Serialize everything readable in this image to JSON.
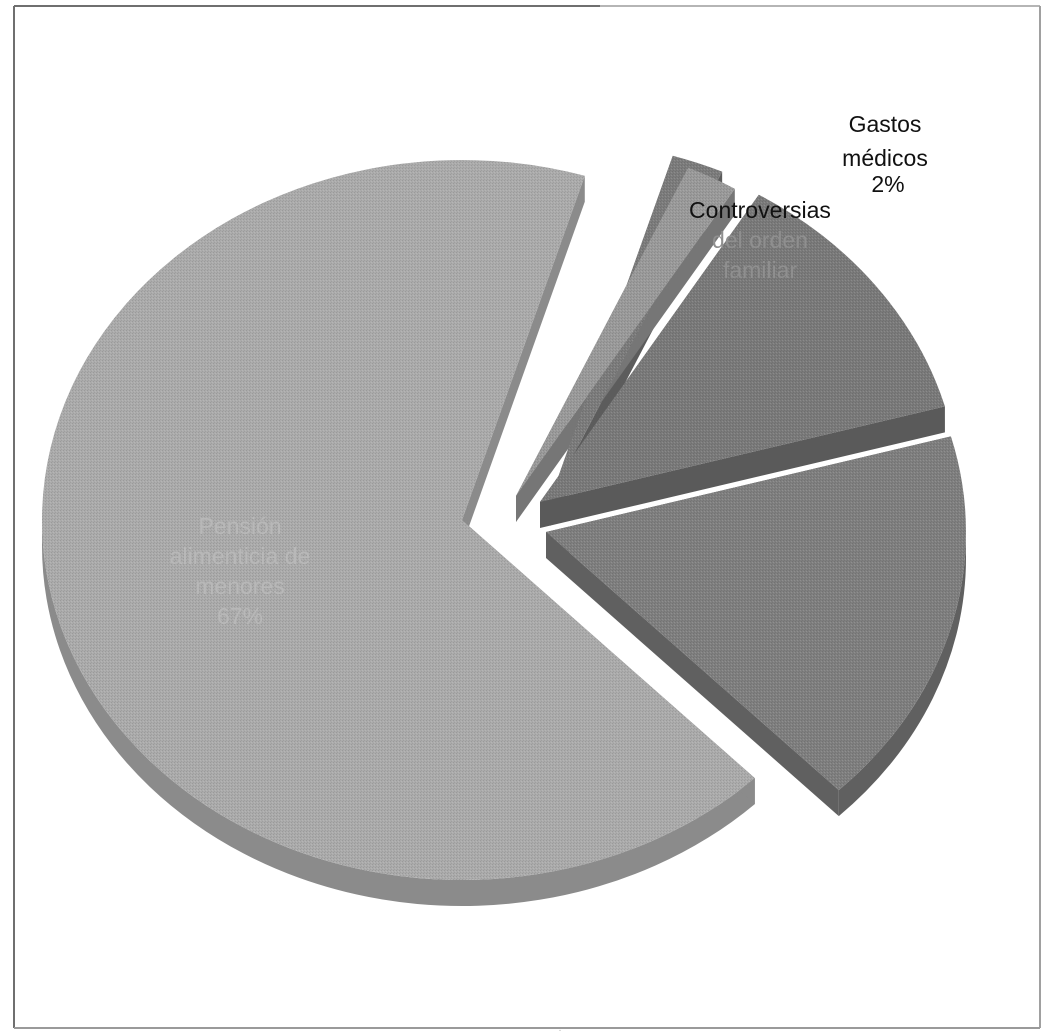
{
  "chart_data": {
    "type": "pie",
    "style": "3d-exploded",
    "categories": [
      "Gastos médicos",
      "Controversias del orden familiar",
      "",
      "",
      "Pensión alimenticia de menores"
    ],
    "values": [
      2,
      2,
      12,
      17,
      67
    ],
    "labels": [
      {
        "category_lines": [
          "Gastos",
          "médicos"
        ],
        "value": "2%"
      },
      {
        "category_lines": [
          "Controversias",
          "del orden",
          "familiar"
        ],
        "value": ""
      },
      {
        "category_lines": [],
        "value": ""
      },
      {
        "category_lines": [],
        "value": ""
      },
      {
        "category_lines": [
          "Pensión",
          "alimenticia de",
          "menores"
        ],
        "value": "67%"
      }
    ],
    "colors": [
      "#7c7c7c",
      "#9a9a9a",
      "#7a7a7a",
      "#7f7f7f",
      "#ababab"
    ],
    "side_colors": [
      "#5c5c5c",
      "#767676",
      "#5a5a5a",
      "#606060",
      "#8b8b8b"
    ],
    "label_colors": [
      "#111111",
      "#111111",
      "",
      "",
      "#b8b8b8"
    ],
    "label_colors_secondary": [
      "#111111",
      "#8f8f8f",
      "",
      "",
      "#b8b8b8"
    ]
  }
}
